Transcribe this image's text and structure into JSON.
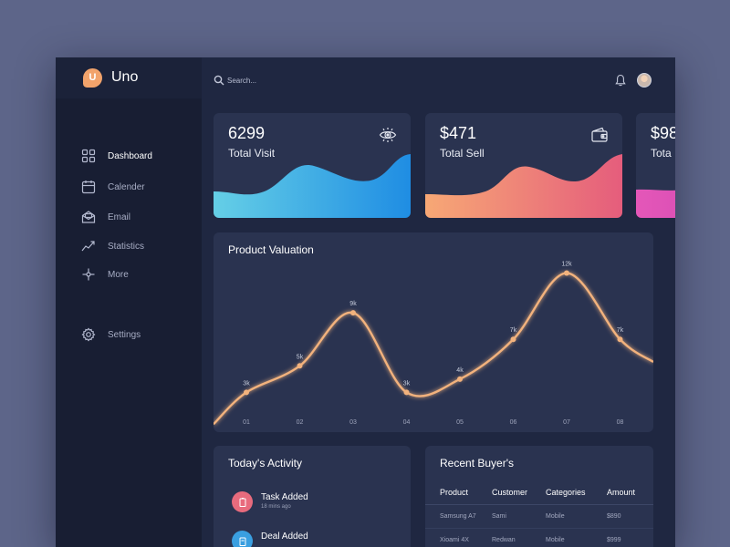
{
  "brand": {
    "name": "Uno",
    "logo_letter": "U",
    "logo_color": "#f2a36b"
  },
  "sidebar": {
    "items": [
      {
        "label": "Dashboard",
        "icon": "grid-icon",
        "active": true
      },
      {
        "label": "Calender",
        "icon": "calendar-icon",
        "active": false
      },
      {
        "label": "Email",
        "icon": "email-icon",
        "active": false
      },
      {
        "label": "Statistics",
        "icon": "statistics-icon",
        "active": false
      },
      {
        "label": "More",
        "icon": "more-icon",
        "active": false
      },
      {
        "label": "Settings",
        "icon": "gear-icon",
        "active": false
      }
    ]
  },
  "header": {
    "search_placeholder": "Search...",
    "bell_icon": "bell-icon",
    "avatar_icon": "avatar"
  },
  "stats": [
    {
      "value": "6299",
      "label": "Total Visit",
      "icon": "eye-icon",
      "gradient": [
        "#65cfe6",
        "#1f8de3"
      ]
    },
    {
      "value": "$471",
      "label": "Total Sell",
      "icon": "wallet-icon",
      "gradient": [
        "#f7a875",
        "#e55d7c"
      ]
    },
    {
      "value": "$98",
      "label": "Tota",
      "icon": "",
      "gradient": [
        "#e457b8",
        "#c43bb0"
      ]
    }
  ],
  "valuation": {
    "title": "Product Valuation",
    "line_color": "#f2b27d",
    "chart_data": {
      "type": "line",
      "x": [
        "01",
        "02",
        "03",
        "04",
        "05",
        "06",
        "07",
        "08"
      ],
      "values": [
        3,
        5,
        9,
        3,
        4,
        7,
        12,
        7
      ],
      "point_labels": [
        "3k",
        "5k",
        "9k",
        "3k",
        "4k",
        "7k",
        "12k",
        "7k"
      ],
      "title": "Product Valuation",
      "xlabel": "",
      "ylabel": "",
      "ylim": [
        0,
        13
      ],
      "grid": false,
      "legend": "none"
    }
  },
  "activity": {
    "title": "Today's Activity",
    "items": [
      {
        "title": "Task Added",
        "time": "18 mins ago",
        "icon": "task-icon",
        "color": "#e86b7d"
      },
      {
        "title": "Deal Added",
        "time": "",
        "icon": "deal-icon",
        "color": "#3a9fe0"
      }
    ]
  },
  "buyers": {
    "title": "Recent Buyer's",
    "columns": [
      "Product",
      "Customer",
      "Categories",
      "Amount"
    ],
    "rows": [
      [
        "Samsung A7",
        "Sami",
        "Mobile",
        "$890"
      ],
      [
        "Xioami 4X",
        "Redwan",
        "Mobile",
        "$999"
      ]
    ]
  }
}
